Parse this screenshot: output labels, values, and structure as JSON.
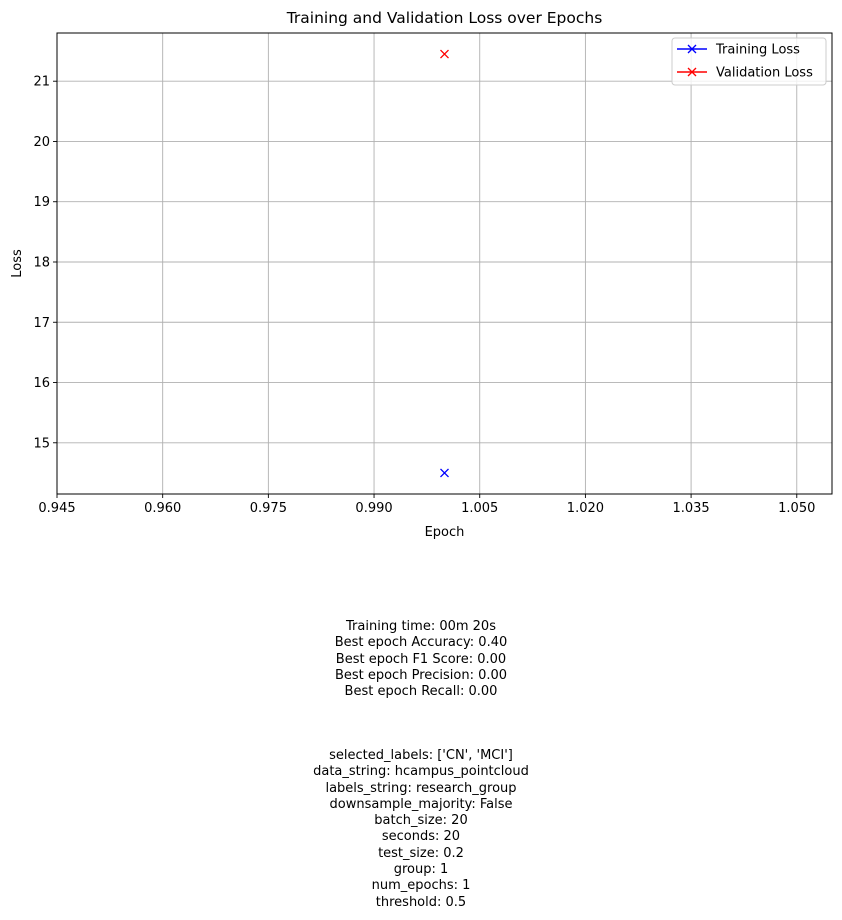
{
  "chart_data": {
    "type": "scatter",
    "title": "Training and Validation Loss over Epochs",
    "xlabel": "Epoch",
    "ylabel": "Loss",
    "xlim": [
      0.945,
      1.055
    ],
    "ylim": [
      14.15,
      21.8
    ],
    "xticks": [
      "0.945",
      "0.960",
      "0.975",
      "0.990",
      "1.005",
      "1.020",
      "1.035",
      "1.050"
    ],
    "xtick_values": [
      0.945,
      0.96,
      0.975,
      0.99,
      1.005,
      1.02,
      1.035,
      1.05
    ],
    "yticks": [
      "15",
      "16",
      "17",
      "18",
      "19",
      "20",
      "21"
    ],
    "ytick_values": [
      15,
      16,
      17,
      18,
      19,
      20,
      21
    ],
    "grid": true,
    "legend_position": "top-right",
    "series": [
      {
        "name": "Training Loss",
        "color": "#0000ff",
        "marker": "x",
        "x": [
          1
        ],
        "y": [
          14.5
        ]
      },
      {
        "name": "Validation Loss",
        "color": "#ff0000",
        "marker": "x",
        "x": [
          1
        ],
        "y": [
          21.45
        ]
      }
    ]
  },
  "stats": [
    "Training time: 00m 20s",
    "Best epoch Accuracy: 0.40",
    "Best epoch F1 Score: 0.00",
    "Best epoch Precision: 0.00",
    "Best epoch Recall: 0.00"
  ],
  "params": [
    "selected_labels: ['CN', 'MCI']",
    "data_string: hcampus_pointcloud",
    "labels_string: research_group",
    "downsample_majority: False",
    "batch_size: 20",
    "seconds: 20",
    "test_size: 0.2",
    "group: 1",
    "num_epochs: 1",
    "threshold: 0.5"
  ]
}
